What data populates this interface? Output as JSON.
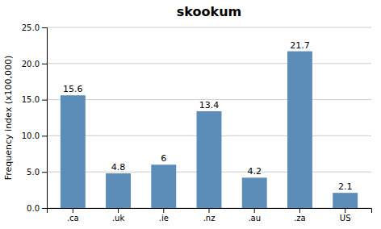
{
  "chart_data": {
    "type": "bar",
    "title": "skookum",
    "categories": [
      ".ca",
      ".uk",
      ".ie",
      ".nz",
      ".au",
      ".za",
      "US"
    ],
    "values": [
      15.6,
      4.8,
      6.0,
      13.4,
      4.2,
      21.7,
      2.1
    ],
    "color": "#5b8db8",
    "ylabel": "Frequency index (x100,000)",
    "ylim": [
      0,
      25.0
    ],
    "yticks": [
      {
        "value": 0.0,
        "label": "0.0"
      },
      {
        "value": 5.0,
        "label": "5.0"
      },
      {
        "value": 10.0,
        "label": "10.0"
      },
      {
        "value": 15.0,
        "label": "15.0"
      },
      {
        "value": 20.0,
        "label": "20.0"
      },
      {
        "value": 25.0,
        "label": "25.0"
      }
    ],
    "grid": true,
    "data_labels": true
  }
}
